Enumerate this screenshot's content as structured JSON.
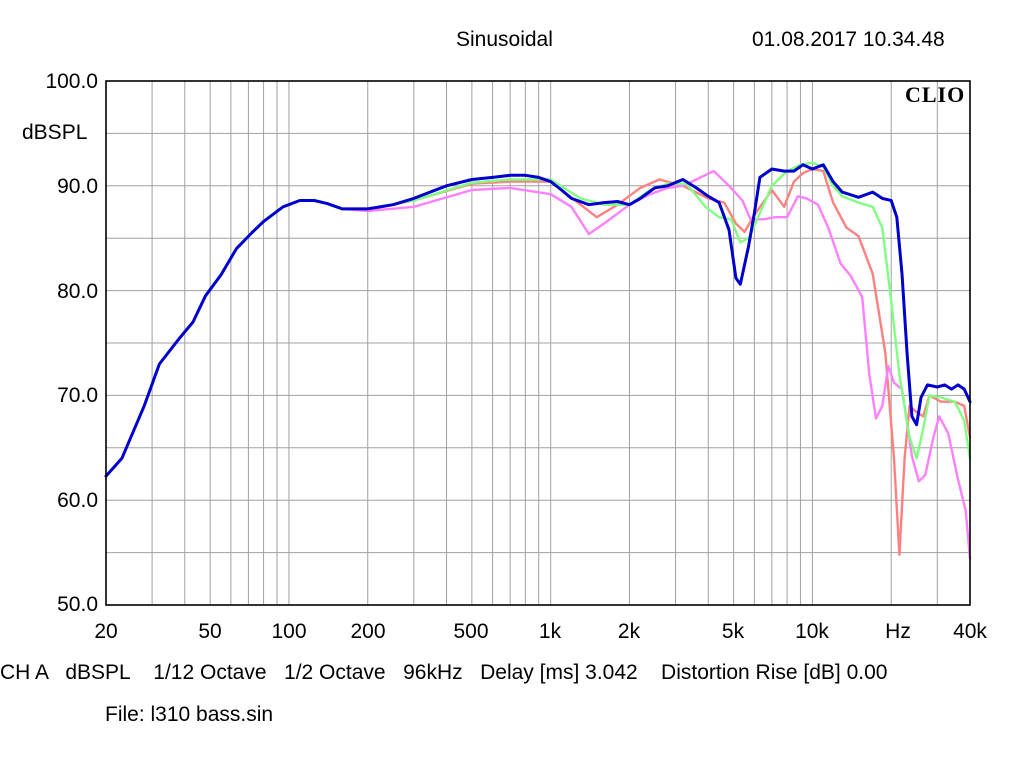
{
  "header": {
    "title": "Sinusoidal",
    "timestamp": "01.08.2017 10.34.48",
    "brand": "CLIO"
  },
  "footer": {
    "status": "CH A   dBSPL    1/12 Octave   1/2 Octave   96kHz   Delay [ms] 3.042    Distortion Rise [dB] 0.00",
    "file": "File: l310 bass.sin"
  },
  "colors": {
    "background": "#ffffff",
    "grid": "#a0a0a0",
    "frame": "#000000"
  },
  "chart_data": {
    "type": "line",
    "title": "Sinusoidal",
    "xlabel": "Hz",
    "ylabel": "dBSPL",
    "xscale": "log",
    "xlim": [
      20,
      40000
    ],
    "ylim": [
      50,
      100
    ],
    "grid": true,
    "x_tick_labels": [
      "20",
      "50",
      "100",
      "200",
      "500",
      "1k",
      "2k",
      "5k",
      "10k",
      "Hz",
      "40k"
    ],
    "x_tick_values": [
      20,
      50,
      100,
      200,
      500,
      1000,
      2000,
      5000,
      10000,
      20000,
      40000
    ],
    "y_tick_labels": [
      "100.0",
      "90.0",
      "80.0",
      "70.0",
      "60.0",
      "50.0"
    ],
    "y_tick_values": [
      100,
      90,
      80,
      70,
      60,
      50
    ],
    "series": [
      {
        "color": "#ff8080",
        "points": [
          [
            160,
            87.8
          ],
          [
            200,
            87.7
          ],
          [
            300,
            88.6
          ],
          [
            500,
            90.2
          ],
          [
            700,
            90.4
          ],
          [
            1000,
            90.4
          ],
          [
            1300,
            88.2
          ],
          [
            1500,
            87.0
          ],
          [
            1800,
            88.2
          ],
          [
            2200,
            89.8
          ],
          [
            2600,
            90.6
          ],
          [
            3200,
            90.0
          ],
          [
            4000,
            88.8
          ],
          [
            4600,
            88.4
          ],
          [
            5100,
            86.4
          ],
          [
            5500,
            85.6
          ],
          [
            6000,
            87.2
          ],
          [
            7000,
            89.6
          ],
          [
            7800,
            88.0
          ],
          [
            8500,
            90.4
          ],
          [
            9200,
            91.2
          ],
          [
            10000,
            91.6
          ],
          [
            11000,
            91.4
          ],
          [
            12000,
            88.4
          ],
          [
            13500,
            86.0
          ],
          [
            15000,
            85.2
          ],
          [
            17000,
            81.6
          ],
          [
            19000,
            74.0
          ],
          [
            20500,
            64.0
          ],
          [
            21500,
            54.8
          ],
          [
            22500,
            64.0
          ],
          [
            23500,
            69.0
          ],
          [
            25000,
            68.4
          ],
          [
            26500,
            68.0
          ],
          [
            28000,
            70.0
          ],
          [
            31000,
            69.4
          ],
          [
            35000,
            69.4
          ],
          [
            38000,
            69.0
          ],
          [
            40000,
            66.0
          ]
        ]
      },
      {
        "color": "#ff80ff",
        "points": [
          [
            160,
            87.8
          ],
          [
            200,
            87.6
          ],
          [
            300,
            88.0
          ],
          [
            500,
            89.6
          ],
          [
            700,
            89.8
          ],
          [
            1000,
            89.2
          ],
          [
            1200,
            88.0
          ],
          [
            1400,
            85.4
          ],
          [
            1600,
            86.4
          ],
          [
            2000,
            88.2
          ],
          [
            2400,
            89.2
          ],
          [
            2800,
            89.8
          ],
          [
            3200,
            90.0
          ],
          [
            3600,
            90.6
          ],
          [
            4200,
            91.4
          ],
          [
            4800,
            90.0
          ],
          [
            5400,
            88.6
          ],
          [
            5800,
            86.8
          ],
          [
            6500,
            86.8
          ],
          [
            7200,
            87.0
          ],
          [
            8000,
            87.0
          ],
          [
            8800,
            89.0
          ],
          [
            9500,
            88.8
          ],
          [
            10500,
            88.2
          ],
          [
            11500,
            86.0
          ],
          [
            12800,
            82.6
          ],
          [
            14000,
            81.4
          ],
          [
            15500,
            79.4
          ],
          [
            16500,
            72.0
          ],
          [
            17500,
            67.8
          ],
          [
            18500,
            69.0
          ],
          [
            19500,
            72.8
          ],
          [
            20500,
            71.2
          ],
          [
            22000,
            70.6
          ],
          [
            24000,
            64.2
          ],
          [
            25500,
            61.8
          ],
          [
            27000,
            62.4
          ],
          [
            29000,
            66.0
          ],
          [
            30500,
            68.0
          ],
          [
            33000,
            66.4
          ],
          [
            36000,
            62.0
          ],
          [
            38500,
            59.0
          ],
          [
            40000,
            54.4
          ]
        ]
      },
      {
        "color": "#80ff80",
        "points": [
          [
            160,
            87.8
          ],
          [
            200,
            87.8
          ],
          [
            300,
            88.6
          ],
          [
            500,
            90.3
          ],
          [
            700,
            90.6
          ],
          [
            1000,
            90.6
          ],
          [
            1300,
            88.8
          ],
          [
            1600,
            88.2
          ],
          [
            2000,
            88.2
          ],
          [
            2400,
            89.6
          ],
          [
            2800,
            90.2
          ],
          [
            3300,
            90.2
          ],
          [
            3900,
            88.0
          ],
          [
            4400,
            87.0
          ],
          [
            4900,
            86.8
          ],
          [
            5300,
            84.6
          ],
          [
            5700,
            85.0
          ],
          [
            6200,
            87.0
          ],
          [
            7000,
            90.0
          ],
          [
            8000,
            91.4
          ],
          [
            9000,
            92.0
          ],
          [
            10000,
            92.2
          ],
          [
            11000,
            91.8
          ],
          [
            12000,
            90.0
          ],
          [
            13000,
            89.0
          ],
          [
            15000,
            88.4
          ],
          [
            17000,
            88.0
          ],
          [
            18500,
            86.0
          ],
          [
            20000,
            79.0
          ],
          [
            21500,
            72.0
          ],
          [
            23500,
            66.0
          ],
          [
            25000,
            64.0
          ],
          [
            26500,
            66.8
          ],
          [
            28000,
            70.0
          ],
          [
            31000,
            69.8
          ],
          [
            35000,
            69.4
          ],
          [
            38000,
            67.6
          ],
          [
            40000,
            64.0
          ]
        ]
      },
      {
        "color": "#0000cc",
        "points": [
          [
            20,
            62.3
          ],
          [
            23,
            64.0
          ],
          [
            28,
            69.0
          ],
          [
            32,
            73.0
          ],
          [
            38,
            75.4
          ],
          [
            43,
            77.0
          ],
          [
            48,
            79.5
          ],
          [
            55,
            81.5
          ],
          [
            63,
            84.0
          ],
          [
            72,
            85.5
          ],
          [
            80,
            86.6
          ],
          [
            95,
            88.0
          ],
          [
            110,
            88.6
          ],
          [
            125,
            88.6
          ],
          [
            140,
            88.3
          ],
          [
            160,
            87.8
          ],
          [
            200,
            87.8
          ],
          [
            250,
            88.2
          ],
          [
            300,
            88.8
          ],
          [
            400,
            90.0
          ],
          [
            500,
            90.6
          ],
          [
            600,
            90.8
          ],
          [
            700,
            91.0
          ],
          [
            800,
            91.0
          ],
          [
            900,
            90.8
          ],
          [
            1000,
            90.4
          ],
          [
            1100,
            89.6
          ],
          [
            1200,
            88.8
          ],
          [
            1400,
            88.2
          ],
          [
            1600,
            88.4
          ],
          [
            1800,
            88.5
          ],
          [
            2000,
            88.2
          ],
          [
            2200,
            88.8
          ],
          [
            2500,
            89.8
          ],
          [
            2800,
            90.0
          ],
          [
            3200,
            90.6
          ],
          [
            3600,
            89.8
          ],
          [
            4000,
            89.0
          ],
          [
            4400,
            88.4
          ],
          [
            4800,
            85.8
          ],
          [
            5100,
            81.2
          ],
          [
            5300,
            80.6
          ],
          [
            5700,
            84.2
          ],
          [
            6000,
            87.4
          ],
          [
            6300,
            90.8
          ],
          [
            7000,
            91.6
          ],
          [
            7800,
            91.4
          ],
          [
            8500,
            91.4
          ],
          [
            9200,
            92.0
          ],
          [
            10000,
            91.6
          ],
          [
            11000,
            92.0
          ],
          [
            12000,
            90.4
          ],
          [
            13000,
            89.4
          ],
          [
            15000,
            88.9
          ],
          [
            17000,
            89.4
          ],
          [
            18500,
            88.8
          ],
          [
            20000,
            88.6
          ],
          [
            21000,
            87.0
          ],
          [
            22000,
            81.6
          ],
          [
            23000,
            74.0
          ],
          [
            24000,
            68.0
          ],
          [
            25000,
            67.2
          ],
          [
            26000,
            69.8
          ],
          [
            27500,
            71.0
          ],
          [
            30000,
            70.8
          ],
          [
            32000,
            71.0
          ],
          [
            34000,
            70.6
          ],
          [
            36000,
            71.0
          ],
          [
            38000,
            70.6
          ],
          [
            40000,
            69.4
          ]
        ]
      }
    ]
  }
}
